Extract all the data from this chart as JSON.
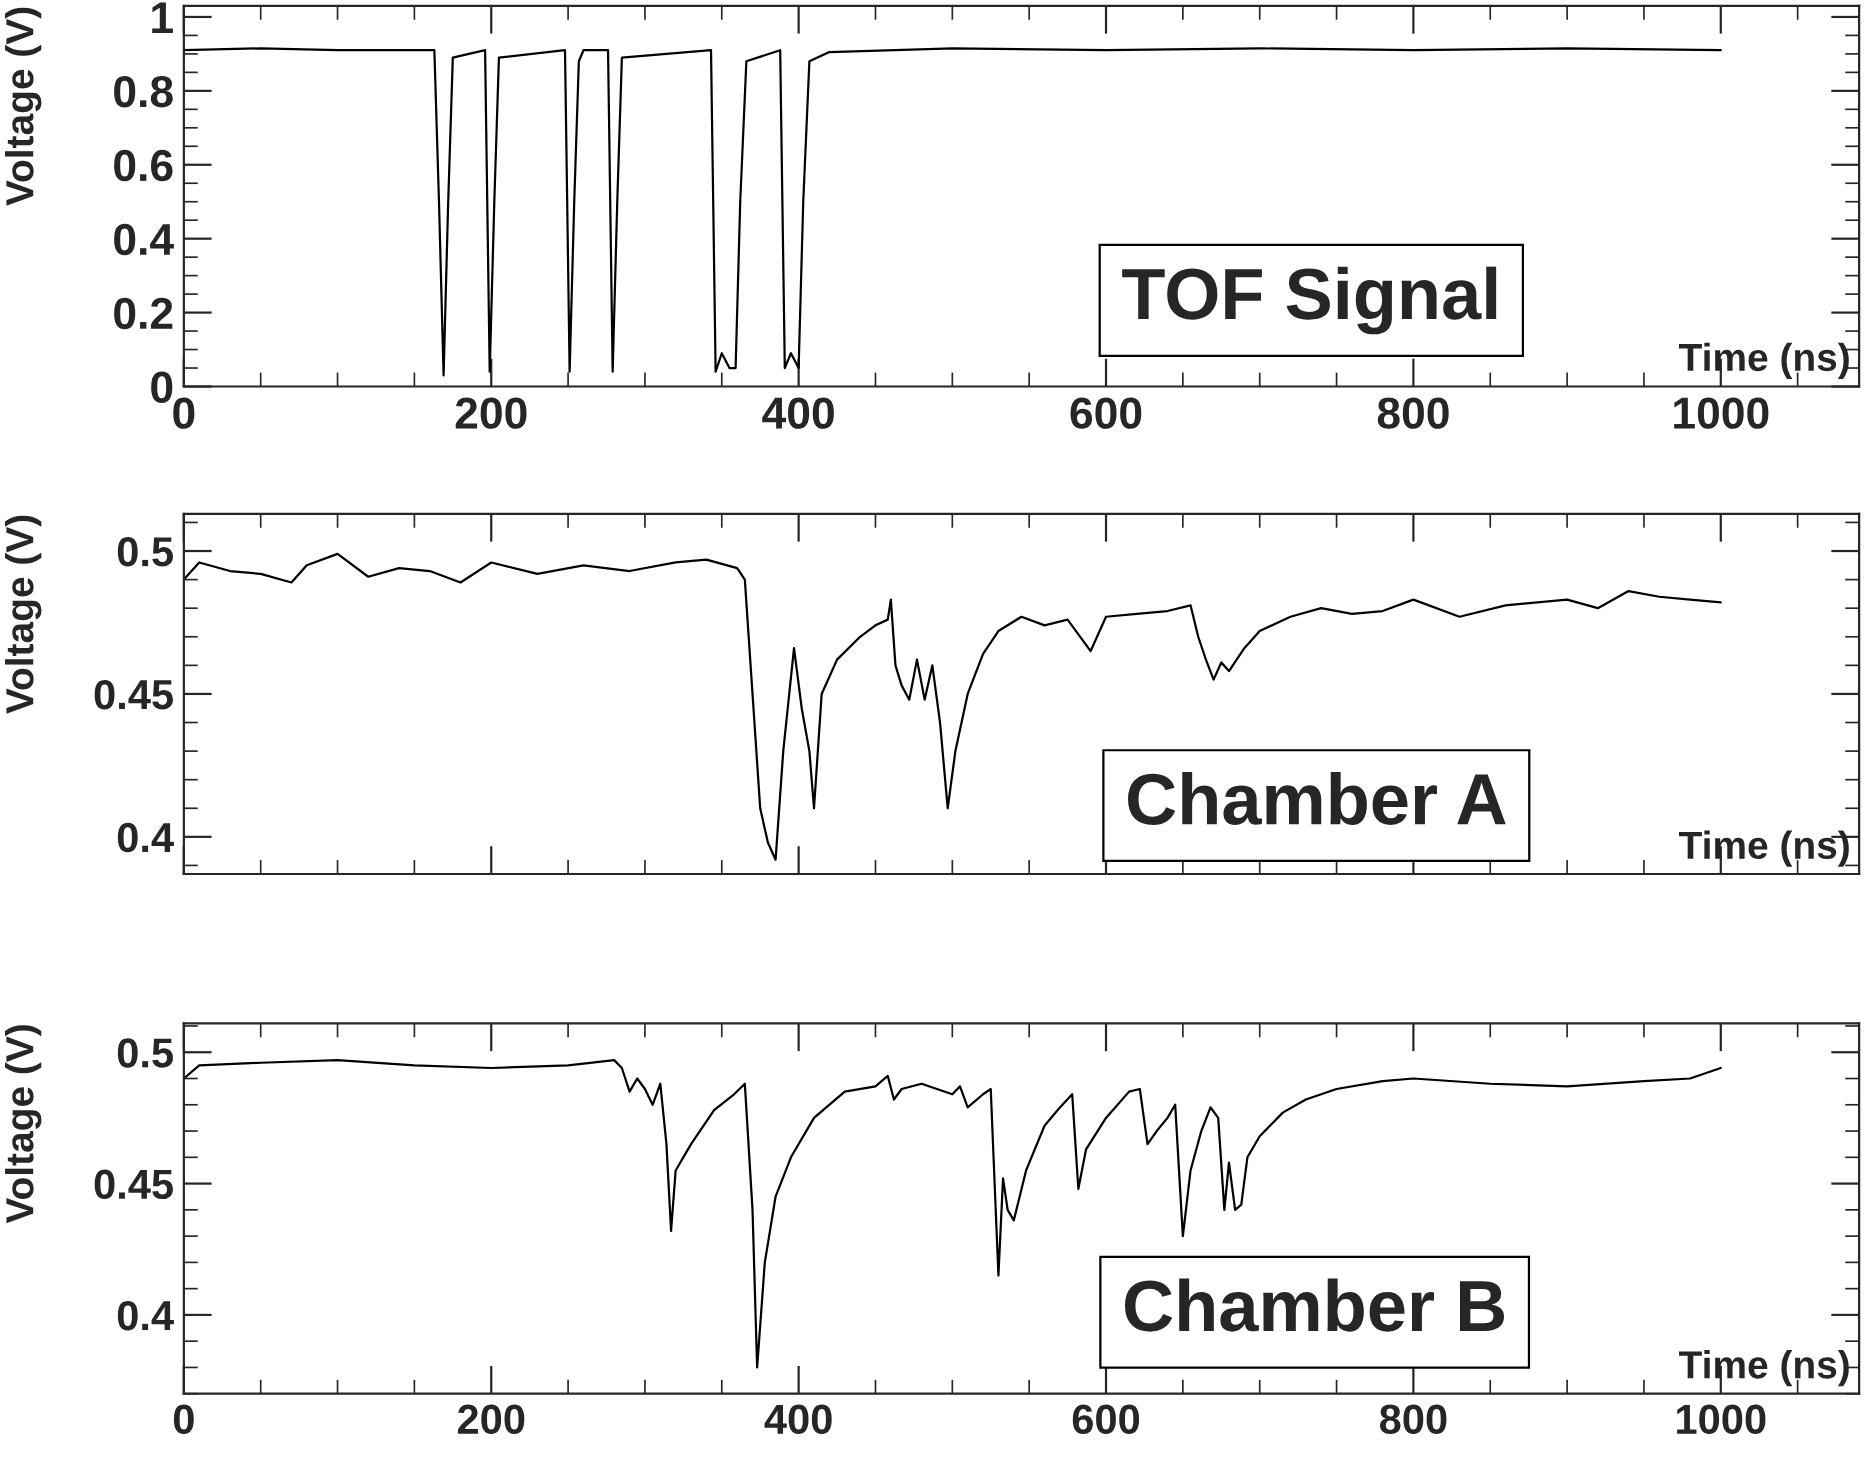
{
  "chart_data": [
    {
      "type": "line",
      "xlabel": "Time (ns)",
      "ylabel": "Voltage (V)",
      "annotations": [
        "TOF Signal"
      ],
      "xlim": [
        0,
        1090
      ],
      "xticks": [
        0,
        200,
        400,
        600,
        800,
        1000
      ],
      "ylim": [
        0,
        1.03
      ],
      "yticks": [
        0,
        0.2,
        0.4,
        0.6,
        0.8,
        1
      ],
      "grid": false,
      "legend": false,
      "marker": "none",
      "line_style": "solid",
      "series": [
        {
          "color": "#000000",
          "x": [
            0,
            50,
            100,
            163,
            166,
            169,
            172,
            175,
            196,
            199,
            202,
            205,
            248,
            251,
            254,
            257,
            260,
            276,
            279,
            282,
            285,
            343,
            346,
            350,
            355,
            359,
            362,
            366,
            388,
            391,
            395,
            400,
            403,
            407,
            420,
            500,
            600,
            700,
            800,
            900,
            1000
          ],
          "values": [
            0.91,
            0.915,
            0.91,
            0.91,
            0.5,
            0.03,
            0.5,
            0.89,
            0.91,
            0.04,
            0.5,
            0.89,
            0.91,
            0.04,
            0.5,
            0.88,
            0.91,
            0.91,
            0.04,
            0.5,
            0.89,
            0.91,
            0.04,
            0.09,
            0.05,
            0.05,
            0.5,
            0.88,
            0.91,
            0.05,
            0.09,
            0.05,
            0.5,
            0.88,
            0.905,
            0.915,
            0.91,
            0.915,
            0.91,
            0.915,
            0.91
          ]
        }
      ]
    },
    {
      "type": "line",
      "xlabel": "Time (ns)",
      "ylabel": "Voltage (V)",
      "annotations": [
        "Chamber A"
      ],
      "xlim": [
        0,
        1090
      ],
      "xticks": [
        0,
        200,
        400,
        600,
        800,
        1000
      ],
      "ylim": [
        0.387,
        0.513
      ],
      "yticks": [
        0.4,
        0.45,
        0.5
      ],
      "tick_labels": "y",
      "grid": false,
      "legend": false,
      "marker": "none",
      "line_style": "solid",
      "series": [
        {
          "color": "#000000",
          "x": [
            0,
            10,
            30,
            50,
            70,
            80,
            100,
            120,
            140,
            160,
            180,
            200,
            230,
            260,
            290,
            320,
            340,
            360,
            365,
            370,
            375,
            380,
            385,
            390,
            397,
            402,
            407,
            410,
            415,
            425,
            440,
            450,
            458,
            460,
            463,
            467,
            472,
            477,
            482,
            487,
            492,
            497,
            502,
            510,
            520,
            530,
            545,
            560,
            575,
            590,
            600,
            620,
            640,
            655,
            660,
            665,
            670,
            675,
            680,
            690,
            700,
            720,
            740,
            760,
            780,
            800,
            830,
            860,
            900,
            920,
            940,
            960,
            980,
            1000
          ],
          "values": [
            0.49,
            0.496,
            0.493,
            0.492,
            0.489,
            0.495,
            0.499,
            0.491,
            0.494,
            0.493,
            0.489,
            0.496,
            0.492,
            0.495,
            0.493,
            0.496,
            0.497,
            0.494,
            0.49,
            0.45,
            0.41,
            0.398,
            0.392,
            0.43,
            0.466,
            0.445,
            0.43,
            0.41,
            0.45,
            0.462,
            0.47,
            0.474,
            0.476,
            0.483,
            0.46,
            0.453,
            0.448,
            0.462,
            0.448,
            0.46,
            0.44,
            0.41,
            0.43,
            0.45,
            0.464,
            0.472,
            0.477,
            0.474,
            0.476,
            0.465,
            0.477,
            0.478,
            0.479,
            0.481,
            0.47,
            0.462,
            0.455,
            0.461,
            0.458,
            0.466,
            0.472,
            0.477,
            0.48,
            0.478,
            0.479,
            0.483,
            0.477,
            0.481,
            0.483,
            0.48,
            0.486,
            0.484,
            0.483,
            0.482
          ]
        }
      ]
    },
    {
      "type": "line",
      "xlabel": "Time (ns)",
      "ylabel": "Voltage (V)",
      "annotations": [
        "Chamber B"
      ],
      "xlim": [
        0,
        1090
      ],
      "xticks": [
        0,
        200,
        400,
        600,
        800,
        1000
      ],
      "ylim": [
        0.37,
        0.511
      ],
      "yticks": [
        0.4,
        0.45,
        0.5
      ],
      "grid": false,
      "legend": false,
      "marker": "none",
      "line_style": "solid",
      "series": [
        {
          "color": "#000000",
          "x": [
            0,
            10,
            50,
            100,
            150,
            200,
            250,
            280,
            285,
            290,
            295,
            300,
            305,
            310,
            314,
            317,
            320,
            330,
            345,
            358,
            365,
            370,
            373,
            378,
            385,
            395,
            410,
            430,
            450,
            458,
            462,
            467,
            480,
            500,
            505,
            510,
            520,
            525,
            530,
            533,
            536,
            540,
            548,
            560,
            570,
            578,
            582,
            587,
            600,
            615,
            622,
            627,
            633,
            640,
            645,
            650,
            655,
            662,
            668,
            673,
            677,
            680,
            684,
            688,
            692,
            700,
            715,
            730,
            750,
            780,
            800,
            850,
            900,
            950,
            980,
            1000
          ],
          "values": [
            0.49,
            0.495,
            0.496,
            0.497,
            0.495,
            0.494,
            0.495,
            0.497,
            0.494,
            0.485,
            0.49,
            0.486,
            0.48,
            0.488,
            0.465,
            0.432,
            0.455,
            0.465,
            0.478,
            0.484,
            0.488,
            0.44,
            0.38,
            0.42,
            0.445,
            0.46,
            0.475,
            0.485,
            0.487,
            0.491,
            0.482,
            0.486,
            0.488,
            0.484,
            0.487,
            0.479,
            0.484,
            0.486,
            0.415,
            0.452,
            0.44,
            0.436,
            0.455,
            0.472,
            0.479,
            0.484,
            0.448,
            0.463,
            0.475,
            0.485,
            0.486,
            0.465,
            0.47,
            0.475,
            0.48,
            0.43,
            0.455,
            0.47,
            0.479,
            0.475,
            0.44,
            0.458,
            0.44,
            0.442,
            0.46,
            0.468,
            0.477,
            0.482,
            0.486,
            0.489,
            0.49,
            0.488,
            0.487,
            0.489,
            0.49,
            0.494
          ]
        }
      ]
    }
  ]
}
